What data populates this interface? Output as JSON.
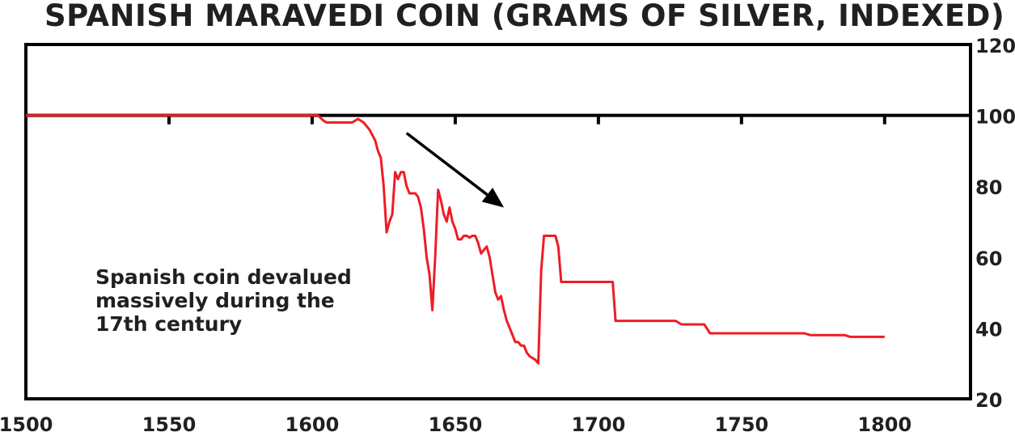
{
  "chart_data": {
    "type": "line",
    "title": "SPANISH MARAVEDI COIN (GRAMS OF SILVER, INDEXED)",
    "xlabel": "",
    "ylabel": "",
    "xlim": [
      1500,
      1830
    ],
    "ylim": [
      20,
      120
    ],
    "x_ticks": [
      1500,
      1550,
      1600,
      1650,
      1700,
      1750,
      1800
    ],
    "y_ticks": [
      20,
      40,
      60,
      80,
      100,
      120
    ],
    "y_axis_side": "right",
    "reference_line": 100,
    "grid": false,
    "series": [
      {
        "name": "",
        "color": "#ee1c25",
        "points": [
          [
            1500,
            100
          ],
          [
            1602,
            100
          ],
          [
            1604,
            98.5
          ],
          [
            1605,
            98
          ],
          [
            1614,
            98
          ],
          [
            1616,
            99
          ],
          [
            1618,
            98
          ],
          [
            1620,
            96
          ],
          [
            1622,
            93
          ],
          [
            1623,
            90
          ],
          [
            1624,
            88
          ],
          [
            1625,
            80
          ],
          [
            1626,
            67
          ],
          [
            1627,
            70
          ],
          [
            1628,
            72
          ],
          [
            1629,
            84
          ],
          [
            1630,
            82
          ],
          [
            1631,
            84
          ],
          [
            1632,
            84
          ],
          [
            1633,
            80
          ],
          [
            1634,
            78
          ],
          [
            1636,
            78
          ],
          [
            1637,
            77
          ],
          [
            1638,
            74
          ],
          [
            1639,
            68
          ],
          [
            1640,
            60
          ],
          [
            1641,
            55
          ],
          [
            1642,
            45
          ],
          [
            1643,
            60
          ],
          [
            1644,
            79
          ],
          [
            1645,
            76
          ],
          [
            1646,
            72
          ],
          [
            1647,
            70
          ],
          [
            1648,
            74
          ],
          [
            1649,
            70
          ],
          [
            1650,
            68
          ],
          [
            1651,
            65
          ],
          [
            1652,
            65
          ],
          [
            1653,
            66
          ],
          [
            1654,
            66
          ],
          [
            1655,
            65.5
          ],
          [
            1656,
            66
          ],
          [
            1657,
            66
          ],
          [
            1658,
            64
          ],
          [
            1659,
            61
          ],
          [
            1660,
            62
          ],
          [
            1661,
            63
          ],
          [
            1662,
            60
          ],
          [
            1663,
            55
          ],
          [
            1664,
            50
          ],
          [
            1665,
            48
          ],
          [
            1666,
            49
          ],
          [
            1667,
            45
          ],
          [
            1668,
            42
          ],
          [
            1669,
            40
          ],
          [
            1670,
            38
          ],
          [
            1671,
            36
          ],
          [
            1672,
            36
          ],
          [
            1673,
            35
          ],
          [
            1674,
            35
          ],
          [
            1675,
            33
          ],
          [
            1676,
            32
          ],
          [
            1677,
            31.5
          ],
          [
            1678,
            31
          ],
          [
            1679,
            30
          ],
          [
            1680,
            56
          ],
          [
            1681,
            66
          ],
          [
            1685,
            66
          ],
          [
            1686,
            63
          ],
          [
            1687,
            53
          ],
          [
            1705,
            53
          ],
          [
            1706,
            42
          ],
          [
            1727,
            42
          ],
          [
            1729,
            41
          ],
          [
            1737,
            41
          ],
          [
            1739,
            38.5
          ],
          [
            1772,
            38.5
          ],
          [
            1774,
            38
          ],
          [
            1786,
            38
          ],
          [
            1788,
            37.5
          ],
          [
            1800,
            37.5
          ]
        ]
      }
    ],
    "annotations": [
      {
        "lines": [
          "Spanish coin devalued",
          "massively during the",
          "17th century"
        ]
      }
    ],
    "arrow": {
      "from": [
        1633,
        95
      ],
      "to": [
        1667,
        74
      ]
    }
  },
  "colors": {
    "line": "#ee1c25",
    "axis": "#000000",
    "text": "#231f20"
  }
}
